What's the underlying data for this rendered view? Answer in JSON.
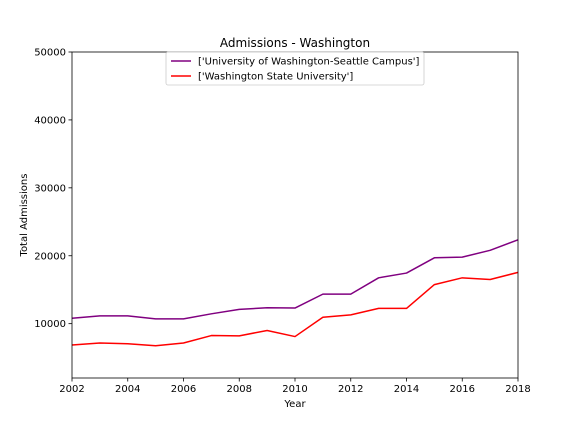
{
  "chart_data": {
    "type": "line",
    "title": "Admissions - Washington",
    "xlabel": "Year",
    "ylabel": "Total Admissions",
    "x": [
      2002,
      2003,
      2004,
      2005,
      2006,
      2007,
      2008,
      2009,
      2010,
      2011,
      2012,
      2013,
      2014,
      2015,
      2016,
      2017,
      2018
    ],
    "xlim": [
      2002,
      2018
    ],
    "ylim": [
      2000,
      50000
    ],
    "xticks": [
      2002,
      2004,
      2006,
      2008,
      2010,
      2012,
      2014,
      2016,
      2018
    ],
    "yticks": [
      10000,
      20000,
      30000,
      40000,
      50000
    ],
    "grid": false,
    "legend_position": "top-center",
    "series": [
      {
        "name": "['University of Washington-Seattle Campus']",
        "color": "#800080",
        "values": [
          10800,
          11150,
          11150,
          10700,
          10700,
          11450,
          12100,
          12350,
          12300,
          14350,
          14350,
          16750,
          17450,
          19700,
          19800,
          20800,
          22350
        ]
      },
      {
        "name": "['Washington State University']",
        "color": "#ff0000",
        "values": [
          6850,
          7150,
          7050,
          6750,
          7150,
          8250,
          8200,
          9000,
          8100,
          10950,
          11300,
          12250,
          12250,
          15750,
          16750,
          16500,
          17550
        ]
      }
    ]
  }
}
